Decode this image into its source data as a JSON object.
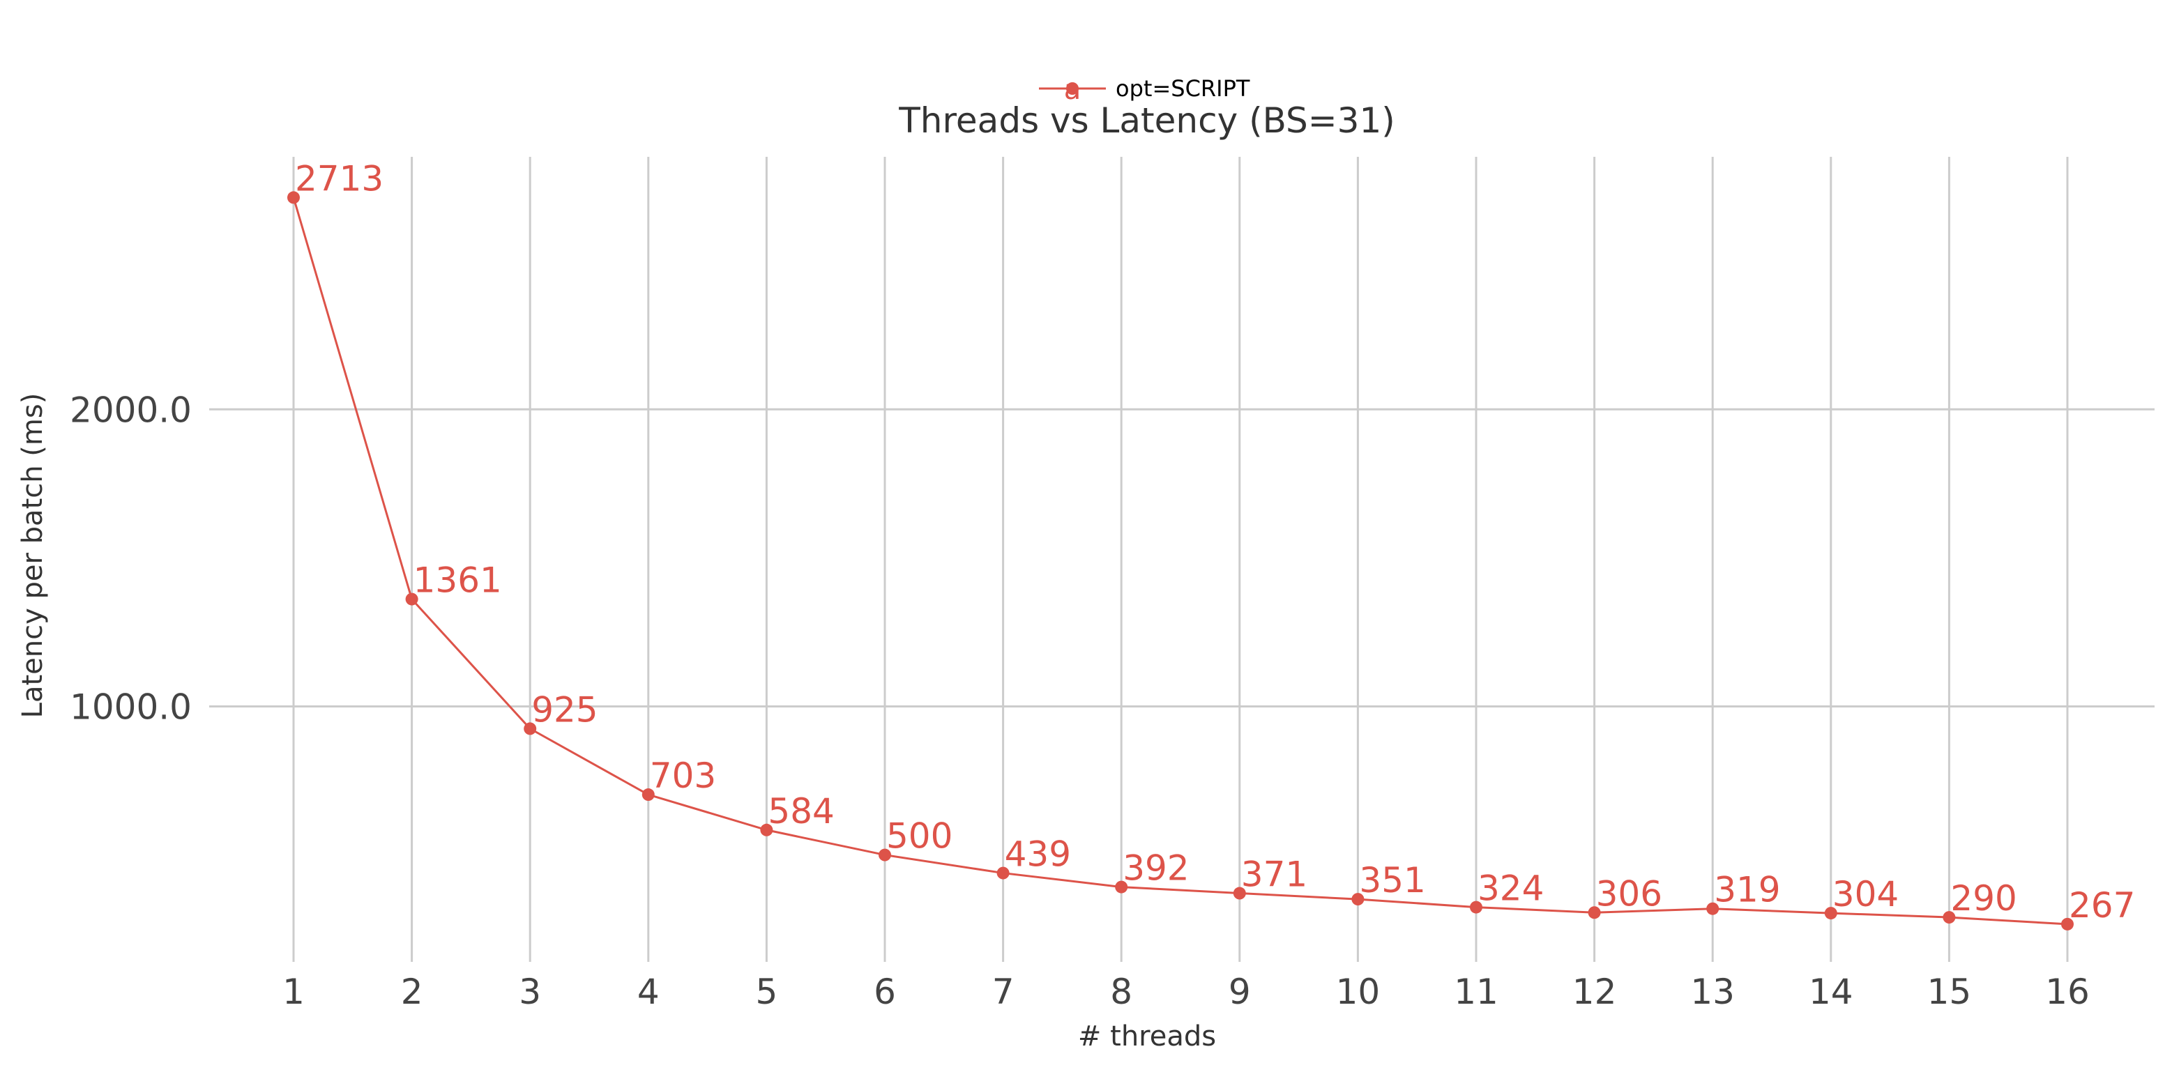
{
  "chart_data": {
    "type": "line",
    "title": "Threads vs Latency (BS=31)",
    "xlabel": "# threads",
    "ylabel": "Latency per batch (ms)",
    "x": [
      1,
      2,
      3,
      4,
      5,
      6,
      7,
      8,
      9,
      10,
      11,
      12,
      13,
      14,
      15,
      16
    ],
    "x_tick_labels": [
      "1",
      "2",
      "3",
      "4",
      "5",
      "6",
      "7",
      "8",
      "9",
      "10",
      "11",
      "12",
      "13",
      "14",
      "15",
      "16"
    ],
    "y_ticks": [
      1000,
      2000
    ],
    "y_tick_labels": [
      "1000.0",
      "2000.0"
    ],
    "ylim": [
      140,
      2850
    ],
    "grid": true,
    "legend_position": "top-center",
    "series": [
      {
        "name": "opt=SCRIPT",
        "color": "#dd5349",
        "values": [
          2713,
          1361,
          925,
          703,
          584,
          500,
          439,
          392,
          371,
          351,
          324,
          306,
          319,
          304,
          290,
          267
        ],
        "data_labels": [
          "2713",
          "1361",
          "925",
          "703",
          "584",
          "500",
          "439",
          "392",
          "371",
          "351",
          "324",
          "306",
          "319",
          "304",
          "290",
          "267"
        ]
      }
    ],
    "legend_marker_glyph": "a"
  }
}
